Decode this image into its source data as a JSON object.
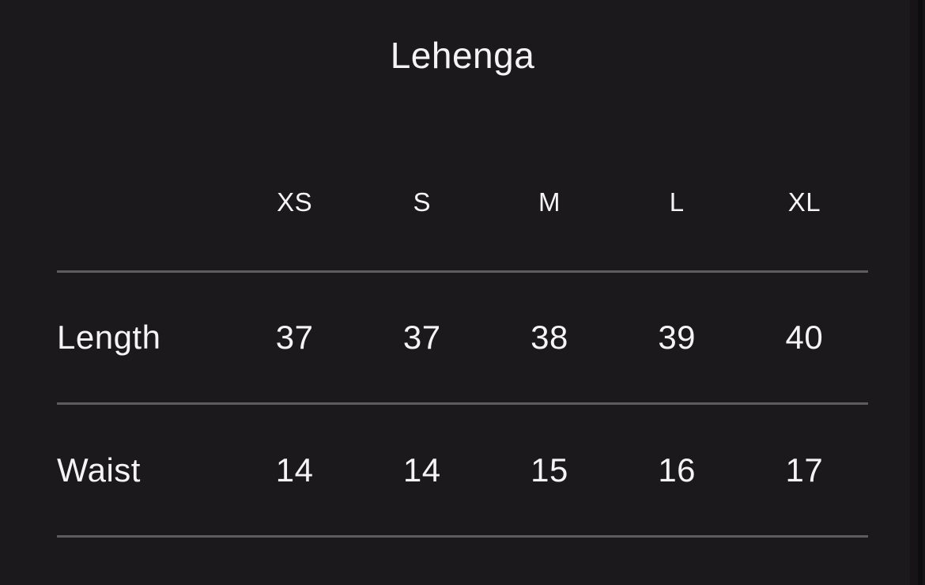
{
  "title": "Lehenga",
  "size_chart": {
    "columns": [
      "XS",
      "S",
      "M",
      "L",
      "XL"
    ],
    "rows": [
      {
        "label": "Length",
        "values": [
          "37",
          "37",
          "38",
          "39",
          "40"
        ]
      },
      {
        "label": "Waist",
        "values": [
          "14",
          "14",
          "15",
          "16",
          "17"
        ]
      }
    ]
  },
  "colors": {
    "background": "#1b191b",
    "text": "#f5f3f5",
    "divider": "#5e5c5e",
    "right_edge_strip": "#161417",
    "right_edge_line": "#0e0d0f"
  }
}
